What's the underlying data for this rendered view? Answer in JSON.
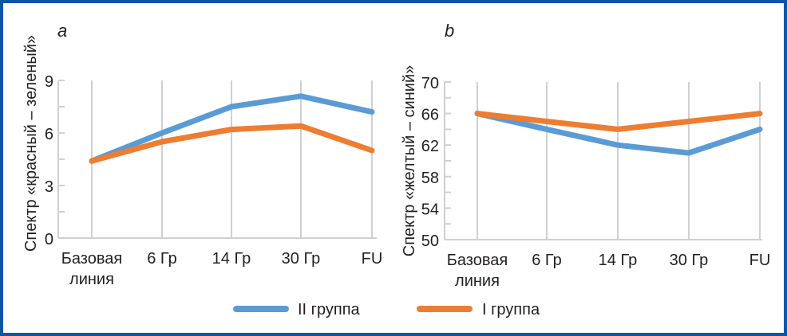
{
  "chart_data": [
    {
      "type": "line",
      "panel_label": "a",
      "ylabel": "Спектр «красный – зеленый»",
      "xlabel": "",
      "categories": [
        [
          "Базовая",
          "линия"
        ],
        [
          "6 Гр"
        ],
        [
          "14 Гр"
        ],
        [
          "30 Гр"
        ],
        [
          "FU"
        ]
      ],
      "ylim": [
        0,
        9
      ],
      "yticks": [
        0,
        3,
        6,
        9
      ],
      "yticks_minor_step": 1.5,
      "grid": "vertical",
      "series": [
        {
          "name": "II группа",
          "color": "#5b9bd5",
          "values": [
            4.4,
            6.0,
            7.5,
            8.1,
            7.2
          ]
        },
        {
          "name": "I группа",
          "color": "#ed7d31",
          "values": [
            4.4,
            5.5,
            6.2,
            6.4,
            5.0
          ]
        }
      ]
    },
    {
      "type": "line",
      "panel_label": "b",
      "ylabel": "Спектр «желтый – синий»",
      "xlabel": "",
      "categories": [
        [
          "Базовая",
          "линия"
        ],
        [
          "6 Гр"
        ],
        [
          "14 Гр"
        ],
        [
          "30 Гр"
        ],
        [
          "FU"
        ]
      ],
      "ylim": [
        50,
        70
      ],
      "yticks": [
        50,
        54,
        58,
        62,
        66,
        70
      ],
      "yticks_minor_step": 2,
      "grid": "vertical",
      "series": [
        {
          "name": "II группа",
          "color": "#5b9bd5",
          "values": [
            66,
            64,
            62,
            61,
            64
          ]
        },
        {
          "name": "I группа",
          "color": "#ed7d31",
          "values": [
            66,
            65,
            64,
            65,
            66
          ]
        }
      ]
    }
  ],
  "legend": {
    "position": "bottom-center",
    "items": [
      {
        "label": "II группа",
        "color": "#5b9bd5"
      },
      {
        "label": "I группа",
        "color": "#ed7d31"
      }
    ]
  },
  "frame": {
    "border_color": "#0d55a5"
  }
}
